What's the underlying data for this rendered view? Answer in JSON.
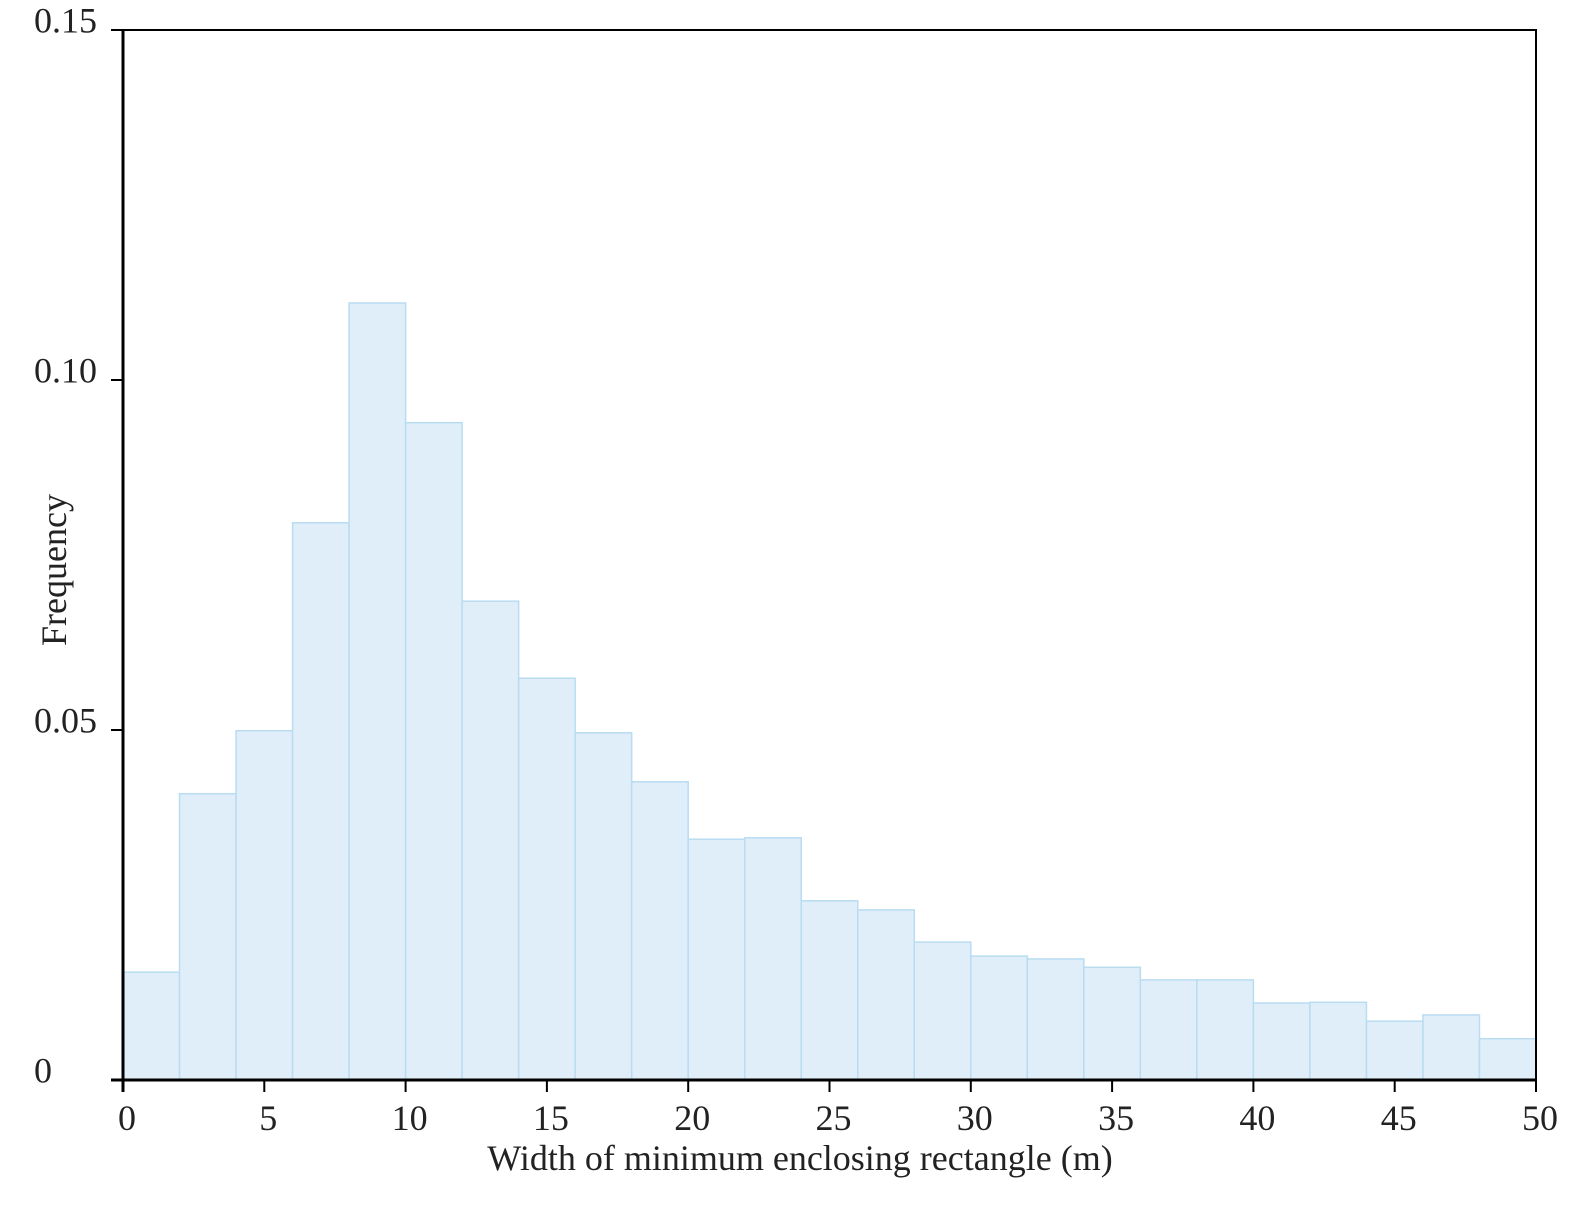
{
  "chart_data": {
    "type": "histogram",
    "xlabel": "Width of minimum enclosing rectangle (m)",
    "ylabel": "Frequency",
    "bins": [
      0,
      2,
      4,
      6,
      8,
      10,
      12,
      14,
      16,
      18,
      20,
      22,
      24,
      26,
      28,
      30,
      32,
      34,
      36,
      38,
      40,
      42,
      44,
      46,
      48,
      50
    ],
    "values": [
      0.0154,
      0.0409,
      0.0499,
      0.0796,
      0.111,
      0.0939,
      0.0684,
      0.0574,
      0.0496,
      0.0426,
      0.0344,
      0.0346,
      0.0256,
      0.0243,
      0.0197,
      0.0177,
      0.0173,
      0.0161,
      0.0143,
      0.0143,
      0.011,
      0.0111,
      0.0084,
      0.0093,
      0.0059
    ],
    "color": "#e0eefa",
    "edgecolor": "#b9dcf1",
    "xlim": [
      0,
      50
    ],
    "xticks": [
      0,
      5,
      10,
      15,
      20,
      25,
      30,
      35,
      40,
      45,
      50
    ],
    "ylim": [
      0,
      0.15
    ],
    "yticks": [
      0,
      0.05,
      {
        "value": 0.1,
        "label": "0.10"
      },
      0.15
    ]
  }
}
